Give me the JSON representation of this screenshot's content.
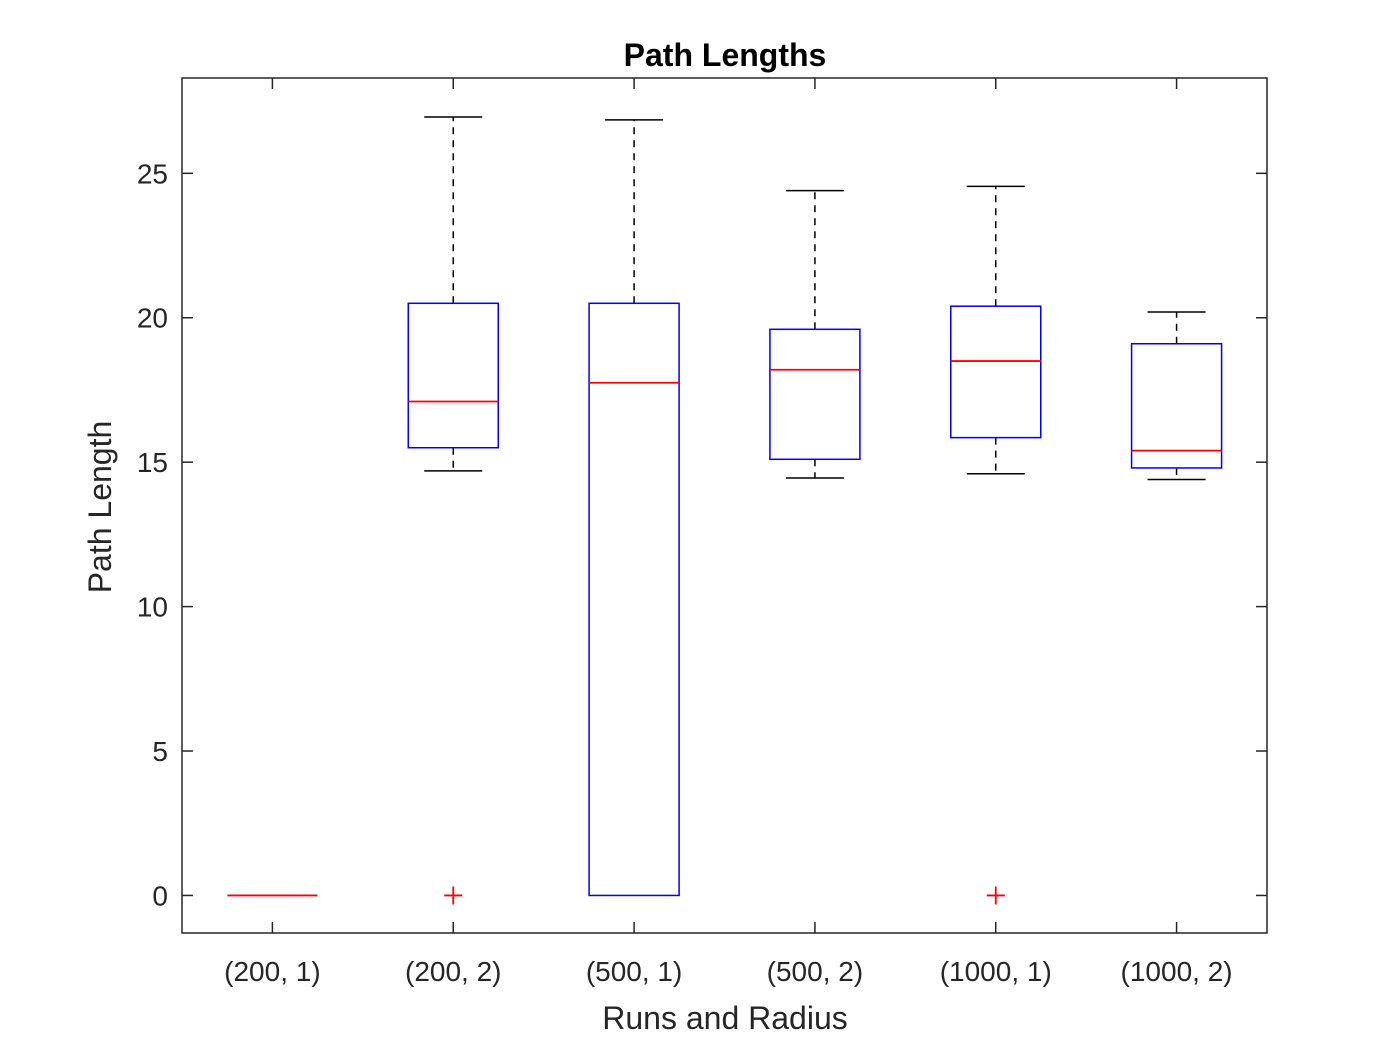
{
  "chart_data": {
    "type": "box",
    "title": "Path Lengths",
    "xlabel": "Runs and Radius",
    "ylabel": "Path Length",
    "ylim": [
      -1.3,
      28.3
    ],
    "yticks": [
      0,
      5,
      10,
      15,
      20,
      25
    ],
    "grid": false,
    "categories": [
      "(200, 1)",
      "(200, 2)",
      "(500, 1)",
      "(500, 2)",
      "(1000, 1)",
      "(1000, 2)"
    ],
    "boxes": [
      {
        "category": "(200, 1)",
        "whisker_low": 0,
        "q1": 0,
        "median": 0,
        "q3": 0,
        "whisker_high": 0,
        "outliers": []
      },
      {
        "category": "(200, 2)",
        "whisker_low": 14.7,
        "q1": 15.5,
        "median": 17.1,
        "q3": 20.5,
        "whisker_high": 26.95,
        "outliers": [
          0
        ]
      },
      {
        "category": "(500, 1)",
        "whisker_low": 0,
        "q1": 0,
        "median": 17.75,
        "q3": 20.5,
        "whisker_high": 26.85,
        "outliers": []
      },
      {
        "category": "(500, 2)",
        "whisker_low": 14.45,
        "q1": 15.1,
        "median": 18.2,
        "q3": 19.6,
        "whisker_high": 24.4,
        "outliers": []
      },
      {
        "category": "(1000, 1)",
        "whisker_low": 14.6,
        "q1": 15.85,
        "median": 18.5,
        "q3": 20.4,
        "whisker_high": 24.55,
        "outliers": [
          0
        ]
      },
      {
        "category": "(1000, 2)",
        "whisker_low": 14.4,
        "q1": 14.8,
        "median": 15.4,
        "q3": 19.1,
        "whisker_high": 20.2,
        "outliers": []
      }
    ],
    "colors": {
      "box": "#0000ff",
      "median": "#ff0000",
      "whisker": "#000000",
      "outlier": "#ff0000",
      "axes": "#262626"
    }
  }
}
